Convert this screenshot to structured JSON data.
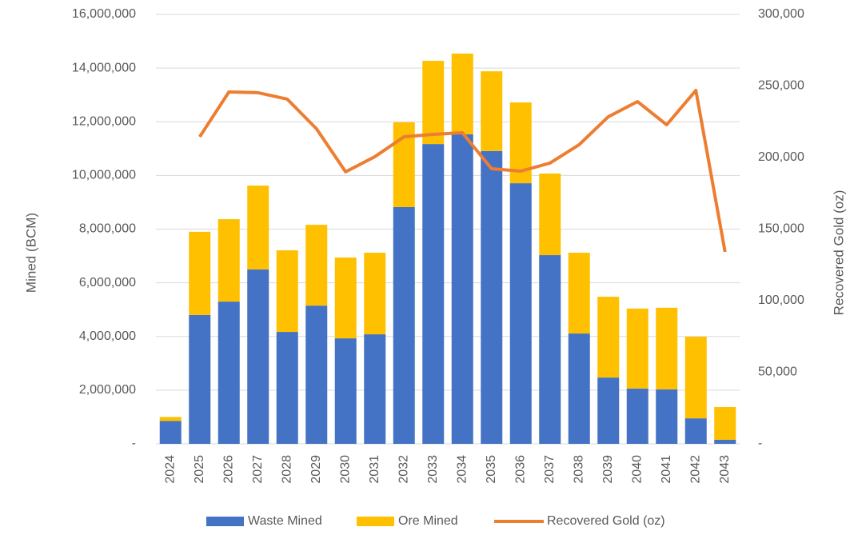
{
  "chart_data": {
    "type": "bar",
    "categories": [
      "2024",
      "2025",
      "2026",
      "2027",
      "2028",
      "2029",
      "2030",
      "2031",
      "2032",
      "2033",
      "2034",
      "2035",
      "2036",
      "2037",
      "2038",
      "2039",
      "2040",
      "2041",
      "2042",
      "2043"
    ],
    "stacked": true,
    "series": [
      {
        "name": "Waste Mined",
        "color": "#4472c4",
        "type": "bar",
        "values": [
          850000,
          4800000,
          5300000,
          6500000,
          4170000,
          5150000,
          3930000,
          4080000,
          8820000,
          11170000,
          11530000,
          10910000,
          9710000,
          7030000,
          4110000,
          2470000,
          2060000,
          2030000,
          950000,
          150000
        ]
      },
      {
        "name": "Ore Mined",
        "color": "#ffc000",
        "type": "bar",
        "values": [
          150000,
          3100000,
          3070000,
          3120000,
          3040000,
          3010000,
          3010000,
          3040000,
          3160000,
          3100000,
          3010000,
          2970000,
          3010000,
          3040000,
          3010000,
          3010000,
          2980000,
          3040000,
          3040000,
          1220000
        ]
      },
      {
        "name": "Recovered Gold (oz)",
        "color": "#ed7d31",
        "type": "line",
        "axis": "y2",
        "values": [
          null,
          214500,
          245800,
          245300,
          240800,
          220100,
          190000,
          200600,
          214500,
          216200,
          217300,
          192200,
          190500,
          196100,
          209000,
          228500,
          239100,
          222900,
          246900,
          134100
        ]
      }
    ],
    "ylabel": "Mined (BCM)",
    "y2label": "Recovered Gold (oz)",
    "ylim": [
      0,
      16000000
    ],
    "yticks": [
      {
        "value": 0,
        "label": "-"
      },
      {
        "value": 2000000,
        "label": "2,000,000"
      },
      {
        "value": 4000000,
        "label": "4,000,000"
      },
      {
        "value": 6000000,
        "label": "6,000,000"
      },
      {
        "value": 8000000,
        "label": "8,000,000"
      },
      {
        "value": 10000000,
        "label": "10,000,000"
      },
      {
        "value": 12000000,
        "label": "12,000,000"
      },
      {
        "value": 14000000,
        "label": "14,000,000"
      },
      {
        "value": 16000000,
        "label": "16,000,000"
      }
    ],
    "y2lim": [
      0,
      300000
    ],
    "y2ticks": [
      {
        "value": 0,
        "label": "-"
      },
      {
        "value": 50000,
        "label": "50,000"
      },
      {
        "value": 100000,
        "label": "100,000"
      },
      {
        "value": 150000,
        "label": "150,000"
      },
      {
        "value": 200000,
        "label": "200,000"
      },
      {
        "value": 250000,
        "label": "250,000"
      },
      {
        "value": 300000,
        "label": "300,000"
      }
    ],
    "grid": true,
    "legend": "bottom"
  }
}
